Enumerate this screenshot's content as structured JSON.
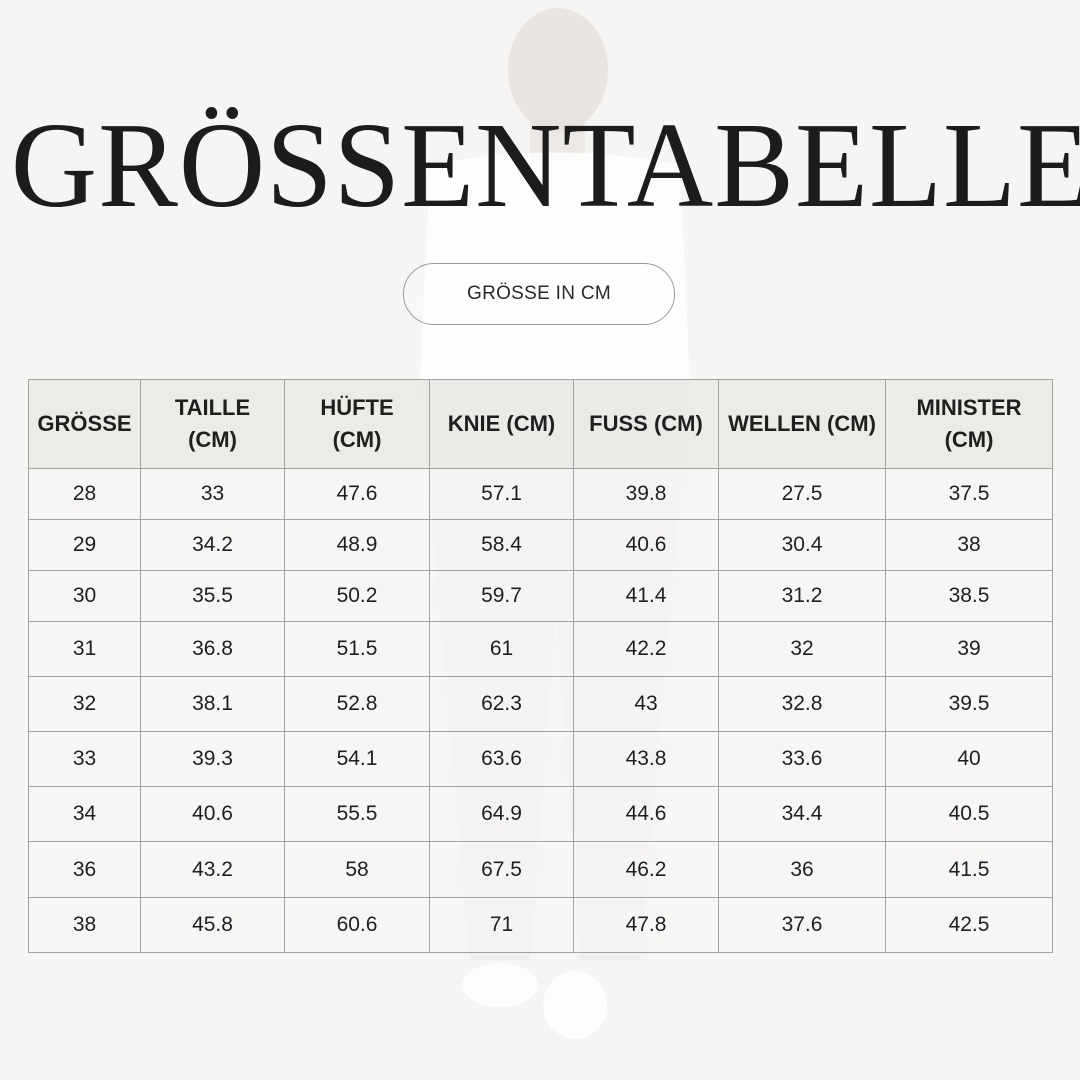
{
  "title": "GRÖSSENTABELLE",
  "subtitle_pill": "GRÖSSE IN CM",
  "table": {
    "headers": [
      "GRÖSSE",
      "TAILLE (CM)",
      "HÜFTE (CM)",
      "KNIE (CM)",
      "FUSS (CM)",
      "WELLEN (CM)",
      "MINISTER (CM)"
    ],
    "rows": [
      [
        "28",
        "33",
        "47.6",
        "57.1",
        "39.8",
        "27.5",
        "37.5"
      ],
      [
        "29",
        "34.2",
        "48.9",
        "58.4",
        "40.6",
        "30.4",
        "38"
      ],
      [
        "30",
        "35.5",
        "50.2",
        "59.7",
        "41.4",
        "31.2",
        "38.5"
      ],
      [
        "31",
        "36.8",
        "51.5",
        "61",
        "42.2",
        "32",
        "39"
      ],
      [
        "32",
        "38.1",
        "52.8",
        "62.3",
        "43",
        "32.8",
        "39.5"
      ],
      [
        "33",
        "39.3",
        "54.1",
        "63.6",
        "43.8",
        "33.6",
        "40"
      ],
      [
        "34",
        "40.6",
        "55.5",
        "64.9",
        "44.6",
        "34.4",
        "40.5"
      ],
      [
        "36",
        "43.2",
        "58",
        "67.5",
        "46.2",
        "36",
        "41.5"
      ],
      [
        "38",
        "45.8",
        "60.6",
        "71",
        "47.8",
        "37.6",
        "42.5"
      ]
    ]
  }
}
